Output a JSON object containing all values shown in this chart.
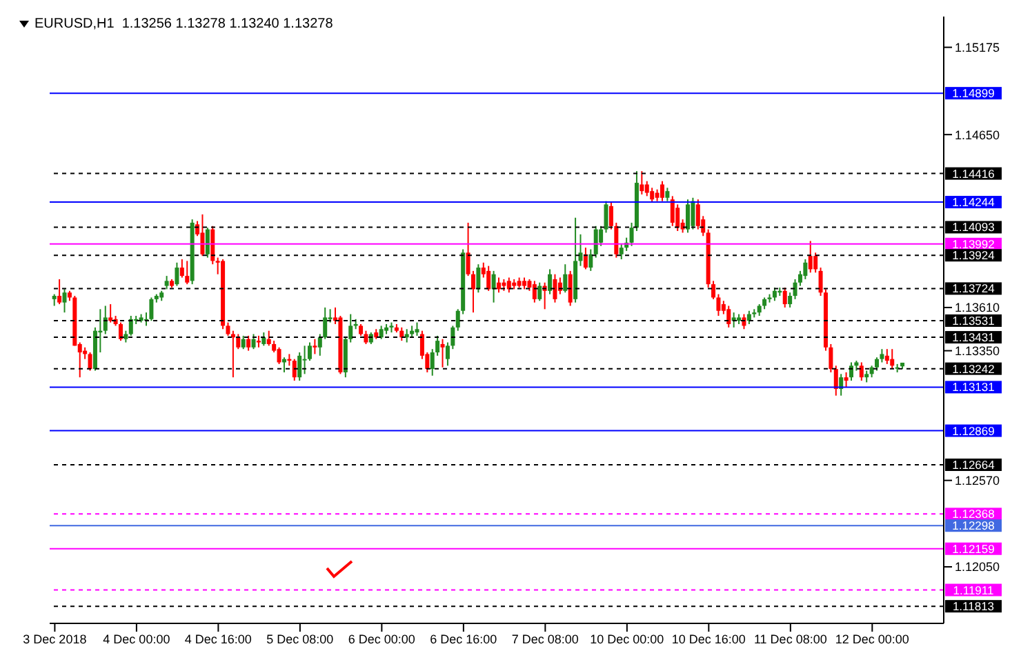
{
  "chart_data": {
    "type": "candlestick",
    "title": "EURUSD,H1  1.13256 1.13278 1.13240 1.13278",
    "categories": [
      "3 Dec 2018",
      null,
      null,
      null,
      null,
      null,
      null,
      null,
      null,
      null,
      null,
      null,
      null,
      null,
      null,
      null,
      "4 Dec 00:00",
      null,
      null,
      null,
      null,
      null,
      null,
      null,
      null,
      null,
      null,
      null,
      null,
      null,
      null,
      null,
      "4 Dec 16:00",
      null,
      null,
      null,
      null,
      null,
      null,
      null,
      null,
      null,
      null,
      null,
      null,
      null,
      null,
      null,
      "5 Dec 08:00",
      null,
      null,
      null,
      null,
      null,
      null,
      null,
      null,
      null,
      null,
      null,
      null,
      null,
      null,
      null,
      "6 Dec 00:00",
      null,
      null,
      null,
      null,
      null,
      null,
      null,
      null,
      null,
      null,
      null,
      null,
      null,
      null,
      null,
      "6 Dec 16:00",
      null,
      null,
      null,
      null,
      null,
      null,
      null,
      null,
      null,
      null,
      null,
      null,
      null,
      null,
      null,
      "7 Dec 08:00",
      null,
      null,
      null,
      null,
      null,
      null,
      null,
      null,
      null,
      null,
      null,
      null,
      null,
      null,
      null,
      "10 Dec 00:00",
      null,
      null,
      null,
      null,
      null,
      null,
      null,
      null,
      null,
      null,
      null,
      null,
      null,
      null,
      null,
      "10 Dec 16:00",
      null,
      null,
      null,
      null,
      null,
      null,
      null,
      null,
      null,
      null,
      null,
      null,
      null,
      null,
      null,
      "11 Dec 08:00",
      null,
      null,
      null,
      null,
      null,
      null,
      null,
      null,
      null,
      null,
      null,
      null,
      null,
      null,
      null,
      "12 Dec 00:00",
      null,
      null,
      null,
      null,
      null,
      null
    ],
    "ohlc": [
      [
        1.1366,
        1.1369,
        1.1362,
        1.1368
      ],
      [
        1.1368,
        1.1378,
        1.1363,
        1.1364
      ],
      [
        1.1364,
        1.1372,
        1.1358,
        1.137
      ],
      [
        1.137,
        1.1371,
        1.1365,
        1.1367
      ],
      [
        1.1367,
        1.1368,
        1.1338,
        1.1338
      ],
      [
        1.1339,
        1.134,
        1.1319,
        1.1334
      ],
      [
        1.1335,
        1.1337,
        1.133,
        1.1333
      ],
      [
        1.1333,
        1.1334,
        1.1323,
        1.1324
      ],
      [
        1.1324,
        1.1349,
        1.1323,
        1.1347
      ],
      [
        1.1346,
        1.136,
        1.1334,
        1.1347
      ],
      [
        1.1347,
        1.1362,
        1.1345,
        1.1355
      ],
      [
        1.1355,
        1.1363,
        1.1352,
        1.1353
      ],
      [
        1.1354,
        1.1356,
        1.135,
        1.1351
      ],
      [
        1.1351,
        1.1352,
        1.1341,
        1.1342
      ],
      [
        1.1342,
        1.1347,
        1.134,
        1.1345
      ],
      [
        1.1345,
        1.1356,
        1.1344,
        1.1354
      ],
      [
        1.1353,
        1.1356,
        1.1351,
        1.1354
      ],
      [
        1.1353,
        1.1357,
        1.1352,
        1.1355
      ],
      [
        1.1354,
        1.1358,
        1.135,
        1.1354
      ],
      [
        1.1354,
        1.1367,
        1.1353,
        1.1366
      ],
      [
        1.1366,
        1.1369,
        1.1364,
        1.1368
      ],
      [
        1.1367,
        1.1371,
        1.1365,
        1.137
      ],
      [
        1.1374,
        1.138,
        1.1372,
        1.1377
      ],
      [
        1.1377,
        1.1378,
        1.1373,
        1.1374
      ],
      [
        1.1375,
        1.1388,
        1.1374,
        1.1385
      ],
      [
        1.1385,
        1.139,
        1.1379,
        1.138
      ],
      [
        1.138,
        1.1389,
        1.1375,
        1.1376
      ],
      [
        1.1377,
        1.1414,
        1.1375,
        1.1412
      ],
      [
        1.1411,
        1.1413,
        1.1404,
        1.1405
      ],
      [
        1.1406,
        1.1417,
        1.1392,
        1.1393
      ],
      [
        1.1393,
        1.1409,
        1.1391,
        1.1408
      ],
      [
        1.1408,
        1.141,
        1.1387,
        1.1389
      ],
      [
        1.1389,
        1.1391,
        1.1381,
        1.1388
      ],
      [
        1.1389,
        1.139,
        1.1348,
        1.135
      ],
      [
        1.135,
        1.1352,
        1.1344,
        1.1345
      ],
      [
        1.1345,
        1.1347,
        1.1319,
        1.1343
      ],
      [
        1.1343,
        1.1345,
        1.1336,
        1.1337
      ],
      [
        1.1337,
        1.1344,
        1.1336,
        1.1342
      ],
      [
        1.1342,
        1.1344,
        1.1335,
        1.1337
      ],
      [
        1.1337,
        1.1345,
        1.1336,
        1.1342
      ],
      [
        1.1341,
        1.1344,
        1.1337,
        1.134
      ],
      [
        1.1339,
        1.1346,
        1.1338,
        1.1343
      ],
      [
        1.1342,
        1.1347,
        1.1338,
        1.1339
      ],
      [
        1.1339,
        1.1341,
        1.1334,
        1.1335
      ],
      [
        1.1336,
        1.1337,
        1.1327,
        1.1328
      ],
      [
        1.1328,
        1.1331,
        1.1322,
        1.133
      ],
      [
        1.133,
        1.1333,
        1.1326,
        1.1329
      ],
      [
        1.1329,
        1.133,
        1.1317,
        1.1319
      ],
      [
        1.1319,
        1.1334,
        1.1317,
        1.1332
      ],
      [
        1.133,
        1.1338,
        1.1321,
        1.133
      ],
      [
        1.133,
        1.134,
        1.1329,
        1.1338
      ],
      [
        1.1338,
        1.1342,
        1.1333,
        1.1337
      ],
      [
        1.1337,
        1.1345,
        1.1332,
        1.1343
      ],
      [
        1.1343,
        1.1361,
        1.1342,
        1.1355
      ],
      [
        1.1354,
        1.136,
        1.1352,
        1.1355
      ],
      [
        1.1355,
        1.1361,
        1.1351,
        1.1353
      ],
      [
        1.1355,
        1.1356,
        1.1321,
        1.1322
      ],
      [
        1.1322,
        1.1343,
        1.1319,
        1.1342
      ],
      [
        1.1342,
        1.1357,
        1.134,
        1.135
      ],
      [
        1.135,
        1.1354,
        1.1348,
        1.1351
      ],
      [
        1.135,
        1.1351,
        1.1344,
        1.1345
      ],
      [
        1.1345,
        1.1347,
        1.1339,
        1.134
      ],
      [
        1.134,
        1.1346,
        1.1339,
        1.1345
      ],
      [
        1.1346,
        1.1348,
        1.1342,
        1.1343
      ],
      [
        1.1343,
        1.135,
        1.1342,
        1.1348
      ],
      [
        1.1347,
        1.1351,
        1.1345,
        1.1349
      ],
      [
        1.1349,
        1.1352,
        1.1346,
        1.135
      ],
      [
        1.1349,
        1.1351,
        1.1346,
        1.1347
      ],
      [
        1.1347,
        1.1349,
        1.1341,
        1.1343
      ],
      [
        1.1343,
        1.1348,
        1.134,
        1.1345
      ],
      [
        1.1345,
        1.135,
        1.1343,
        1.1347
      ],
      [
        1.1346,
        1.1352,
        1.1344,
        1.1348
      ],
      [
        1.1345,
        1.1347,
        1.133,
        1.1332
      ],
      [
        1.1333,
        1.1334,
        1.1322,
        1.1324
      ],
      [
        1.1324,
        1.1336,
        1.132,
        1.1334
      ],
      [
        1.1334,
        1.1344,
        1.1332,
        1.1341
      ],
      [
        1.1339,
        1.1342,
        1.1325,
        1.1337
      ],
      [
        1.133,
        1.134,
        1.1326,
        1.1338
      ],
      [
        1.1338,
        1.135,
        1.1336,
        1.1349
      ],
      [
        1.1349,
        1.136,
        1.1347,
        1.1359
      ],
      [
        1.1359,
        1.1396,
        1.1357,
        1.1394
      ],
      [
        1.1394,
        1.1412,
        1.138,
        1.1381
      ],
      [
        1.1381,
        1.1383,
        1.1358,
        1.1372
      ],
      [
        1.1372,
        1.1387,
        1.137,
        1.1385
      ],
      [
        1.1385,
        1.1388,
        1.1379,
        1.1381
      ],
      [
        1.1383,
        1.1386,
        1.1371,
        1.1372
      ],
      [
        1.1372,
        1.1383,
        1.1364,
        1.1381
      ],
      [
        1.1376,
        1.1379,
        1.137,
        1.1372
      ],
      [
        1.1376,
        1.1378,
        1.1371,
        1.1374
      ],
      [
        1.1377,
        1.1379,
        1.137,
        1.1372
      ],
      [
        1.1376,
        1.1378,
        1.1372,
        1.1374
      ],
      [
        1.1377,
        1.1379,
        1.1373,
        1.1374
      ],
      [
        1.1377,
        1.1379,
        1.1372,
        1.1374
      ],
      [
        1.1377,
        1.1378,
        1.1371,
        1.1373
      ],
      [
        1.1375,
        1.1377,
        1.1364,
        1.1366
      ],
      [
        1.1366,
        1.1376,
        1.1365,
        1.1374
      ],
      [
        1.1374,
        1.1376,
        1.136,
        1.1371
      ],
      [
        1.1371,
        1.1384,
        1.1369,
        1.1381
      ],
      [
        1.1378,
        1.1381,
        1.1364,
        1.1366
      ],
      [
        1.1376,
        1.1379,
        1.1369,
        1.1371
      ],
      [
        1.1371,
        1.1387,
        1.137,
        1.1381
      ],
      [
        1.1381,
        1.1383,
        1.1362,
        1.1364
      ],
      [
        1.1366,
        1.1415,
        1.1364,
        1.1389
      ],
      [
        1.1389,
        1.1405,
        1.1386,
        1.1394
      ],
      [
        1.1393,
        1.1397,
        1.1384,
        1.1385
      ],
      [
        1.1385,
        1.1396,
        1.1383,
        1.1393
      ],
      [
        1.1393,
        1.141,
        1.1391,
        1.1408
      ],
      [
        1.14,
        1.141,
        1.1398,
        1.1408
      ],
      [
        1.1408,
        1.1425,
        1.1406,
        1.1423
      ],
      [
        1.1422,
        1.1424,
        1.1408,
        1.141
      ],
      [
        1.141,
        1.1412,
        1.1391,
        1.1393
      ],
      [
        1.1393,
        1.1399,
        1.139,
        1.1397
      ],
      [
        1.1397,
        1.1403,
        1.1395,
        1.14
      ],
      [
        1.14,
        1.1412,
        1.1398,
        1.1409
      ],
      [
        1.1409,
        1.1443,
        1.1407,
        1.1436
      ],
      [
        1.1435,
        1.1443,
        1.1429,
        1.1431
      ],
      [
        1.1435,
        1.1437,
        1.1428,
        1.143
      ],
      [
        1.1431,
        1.1433,
        1.1424,
        1.1426
      ],
      [
        1.143,
        1.1432,
        1.1425,
        1.1427
      ],
      [
        1.1435,
        1.1437,
        1.1425,
        1.1427
      ],
      [
        1.1427,
        1.1433,
        1.1425,
        1.1431
      ],
      [
        1.1426,
        1.1428,
        1.141,
        1.1412
      ],
      [
        1.1421,
        1.1423,
        1.1407,
        1.1409
      ],
      [
        1.1412,
        1.1414,
        1.1406,
        1.1408
      ],
      [
        1.1408,
        1.1426,
        1.1406,
        1.1423
      ],
      [
        1.141,
        1.1427,
        1.1408,
        1.1425
      ],
      [
        1.1423,
        1.1426,
        1.1408,
        1.141
      ],
      [
        1.1414,
        1.1416,
        1.1404,
        1.1406
      ],
      [
        1.1406,
        1.1408,
        1.1373,
        1.1375
      ],
      [
        1.1375,
        1.1377,
        1.1366,
        1.1367
      ],
      [
        1.1367,
        1.1369,
        1.1356,
        1.1359
      ],
      [
        1.1363,
        1.1365,
        1.1357,
        1.1359
      ],
      [
        1.136,
        1.1362,
        1.1349,
        1.1351
      ],
      [
        1.1353,
        1.1358,
        1.1349,
        1.1355
      ],
      [
        1.1353,
        1.1357,
        1.1351,
        1.1355
      ],
      [
        1.1355,
        1.1357,
        1.1348,
        1.135
      ],
      [
        1.1353,
        1.1359,
        1.1351,
        1.1357
      ],
      [
        1.1357,
        1.136,
        1.1355,
        1.1358
      ],
      [
        1.1358,
        1.1363,
        1.1356,
        1.1362
      ],
      [
        1.1362,
        1.1367,
        1.136,
        1.1366
      ],
      [
        1.1366,
        1.1369,
        1.1364,
        1.1367
      ],
      [
        1.1367,
        1.1373,
        1.1365,
        1.1371
      ],
      [
        1.137,
        1.1373,
        1.1368,
        1.1371
      ],
      [
        1.1371,
        1.1373,
        1.1361,
        1.1363
      ],
      [
        1.1363,
        1.137,
        1.1361,
        1.1368
      ],
      [
        1.1368,
        1.1378,
        1.1366,
        1.1376
      ],
      [
        1.1376,
        1.1383,
        1.1374,
        1.1381
      ],
      [
        1.138,
        1.139,
        1.1378,
        1.1388
      ],
      [
        1.1392,
        1.1401,
        1.1382,
        1.1384
      ],
      [
        1.1392,
        1.1394,
        1.1382,
        1.1384
      ],
      [
        1.1383,
        1.1385,
        1.1368,
        1.137
      ],
      [
        1.137,
        1.1372,
        1.1335,
        1.1337
      ],
      [
        1.1337,
        1.1339,
        1.1322,
        1.1324
      ],
      [
        1.1324,
        1.1326,
        1.1308,
        1.1312
      ],
      [
        1.1312,
        1.1321,
        1.1308,
        1.1319
      ],
      [
        1.1319,
        1.1322,
        1.1313,
        1.1317
      ],
      [
        1.1319,
        1.1328,
        1.1317,
        1.1326
      ],
      [
        1.1326,
        1.1329,
        1.1323,
        1.1328
      ],
      [
        1.1326,
        1.1328,
        1.1317,
        1.1319
      ],
      [
        1.1319,
        1.1323,
        1.1316,
        1.1321
      ],
      [
        1.1321,
        1.1326,
        1.1319,
        1.1325
      ],
      [
        1.1325,
        1.1331,
        1.1323,
        1.133
      ],
      [
        1.133,
        1.1336,
        1.1328,
        1.1333
      ],
      [
        1.1332,
        1.1336,
        1.1327,
        1.1329
      ],
      [
        1.133,
        1.1336,
        1.1324,
        1.1326
      ],
      [
        1.1325,
        1.1327,
        1.1322,
        1.1325
      ],
      [
        1.13256,
        1.13278,
        1.1324,
        1.13278
      ]
    ],
    "ylim": [
      1.1171,
      1.1536
    ],
    "yticks": [
      1.15175,
      {
        "value": 1.1465,
        "label": "1.14650"
      },
      {
        "value": 1.1361,
        "label": "1.13610"
      },
      {
        "value": 1.1335,
        "label": "1.13350"
      },
      {
        "value": 1.1257,
        "label": "1.12570"
      },
      {
        "value": 1.1205,
        "label": "1.12050"
      }
    ],
    "ref_lines": [
      {
        "axis": "y",
        "value": 1.14899,
        "label": "1.14899",
        "color": "#0000ff",
        "line_style": "solid"
      },
      {
        "axis": "y",
        "value": 1.14416,
        "label": "1.14416",
        "color": "#000000",
        "line_style": "dashed"
      },
      {
        "axis": "y",
        "value": 1.14244,
        "label": "1.14244",
        "color": "#0000ff",
        "line_style": "solid"
      },
      {
        "axis": "y",
        "value": 1.14093,
        "label": "1.14093",
        "color": "#000000",
        "line_style": "dashed"
      },
      {
        "axis": "y",
        "value": 1.13992,
        "label": "1.13992",
        "color": "#ff00ff",
        "line_style": "solid"
      },
      {
        "axis": "y",
        "value": 1.13924,
        "label": "1.13924",
        "color": "#000000",
        "line_style": "dashed"
      },
      {
        "axis": "y",
        "value": 1.13724,
        "label": "1.13724",
        "color": "#000000",
        "line_style": "dashed"
      },
      {
        "axis": "y",
        "value": 1.13531,
        "label": "1.13531",
        "color": "#000000",
        "line_style": "dashed"
      },
      {
        "axis": "y",
        "value": 1.13431,
        "label": "1.13431",
        "color": "#000000",
        "line_style": "dashed"
      },
      {
        "axis": "y",
        "value": 1.13242,
        "label": "1.13242",
        "color": "#000000",
        "line_style": "dashed"
      },
      {
        "axis": "y",
        "value": 1.13131,
        "label": "1.13131",
        "color": "#0000ff",
        "line_style": "solid"
      },
      {
        "axis": "y",
        "value": 1.12869,
        "label": "1.12869",
        "color": "#0000ff",
        "line_style": "solid"
      },
      {
        "axis": "y",
        "value": 1.12664,
        "label": "1.12664",
        "color": "#000000",
        "line_style": "dashed"
      },
      {
        "axis": "y",
        "value": 1.12368,
        "label": "1.12368",
        "color": "#ff00ff",
        "line_style": "dashed"
      },
      {
        "axis": "y",
        "value": 1.12298,
        "label": "1.12298",
        "color": "#4169e1",
        "line_style": "solid"
      },
      {
        "axis": "y",
        "value": 1.12159,
        "label": "1.12159",
        "color": "#ff00ff",
        "line_style": "solid"
      },
      {
        "axis": "y",
        "value": 1.11911,
        "label": "1.11911",
        "color": "#ff00ff",
        "line_style": "dashed"
      },
      {
        "axis": "y",
        "value": 1.11813,
        "label": "1.11813",
        "color": "#000000",
        "line_style": "dashed"
      }
    ],
    "grid": false
  }
}
